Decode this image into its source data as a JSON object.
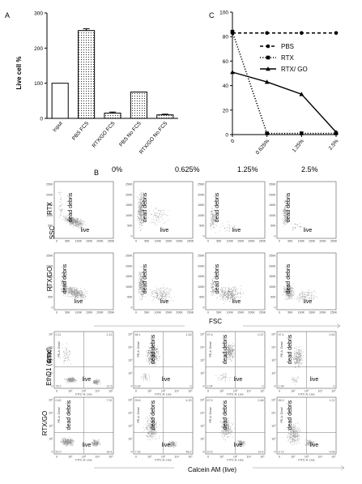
{
  "panel_labels": {
    "a": "A",
    "b": "B",
    "c": "C"
  },
  "chart_data": [
    {
      "type": "bar",
      "ylabel": "Live cell %",
      "xlabel": "",
      "ylim": [
        0,
        300
      ],
      "yticks": [
        "0",
        "100",
        "200",
        "300"
      ],
      "categories": [
        "Input",
        "PBS FCS",
        "RTX/GO FCS",
        "PBS No FCS",
        "RTX/GO No FCS"
      ],
      "values": [
        100,
        250,
        15,
        75,
        10
      ],
      "errors": [
        0,
        5,
        3,
        0,
        2
      ],
      "fills": [
        "white",
        "dots",
        "dots",
        "dots",
        "dots"
      ]
    },
    {
      "type": "line",
      "xlabel": "",
      "ylabel": "",
      "ylim": [
        0,
        100
      ],
      "yticks": [
        "0",
        "20",
        "40",
        "60",
        "80",
        "100"
      ],
      "categories": [
        "0",
        "0.625%",
        "1.25%",
        "2.5%"
      ],
      "series": [
        {
          "name": "PBS",
          "values": [
            83,
            83,
            83,
            83
          ],
          "dash": "dashed",
          "marker": "circle"
        },
        {
          "name": "RTX",
          "values": [
            84,
            1,
            1,
            1
          ],
          "dash": "dotted",
          "marker": "square"
        },
        {
          "name": "RTX/ GO",
          "values": [
            51,
            43,
            33,
            2
          ],
          "dash": "solid",
          "marker": "triangle"
        }
      ],
      "legend_position": "right"
    }
  ],
  "panel_b": {
    "concentrations": [
      "0%",
      "0.625%",
      "1.25%",
      "2.5%"
    ],
    "scatter_axes": {
      "y": "SSC",
      "x": "FSC"
    },
    "fluor_axes": {
      "y": "EthD1 (dead)",
      "x": "Calcein AM (live)"
    },
    "rows": [
      "RTX",
      "RTX/GO",
      "RTX",
      "RTX/GO"
    ],
    "gates": {
      "dead": "dead debris",
      "live": "live"
    },
    "yticks_scatter": [
      "250K",
      "200K",
      "150K",
      "100K",
      "50K",
      "0"
    ],
    "xticks_scatter": [
      "0",
      "50K",
      "100K",
      "150K",
      "200K",
      "250K"
    ],
    "yticks_fluor": [
      "10⁵",
      "10⁴",
      "10³",
      "10²",
      "0"
    ],
    "xticks_fluor": [
      "0",
      "10²",
      "10³",
      "10⁴",
      "10⁵"
    ],
    "fluor_axis_small": {
      "x": "FITC-A: Live",
      "y": "PE-A: Dead"
    },
    "quadrant_values": [
      [
        "0.11",
        "2.13",
        "76.2",
        "21.5"
      ],
      [
        "98.1",
        "1.53",
        "0.39",
        "0"
      ],
      [
        "97.6",
        "0.37",
        "2.04",
        "0"
      ],
      [
        "97.4",
        "0.63",
        "1.99",
        "0"
      ],
      [
        "0.62",
        "7.92",
        "52.0",
        "39.4"
      ],
      [
        "39.6",
        "4.33",
        "7.93",
        "48.2"
      ],
      [
        "67.5",
        "2.68",
        "10.5",
        "19.4"
      ],
      [
        "95.0",
        "1.22",
        "3.73",
        "0.06"
      ]
    ]
  }
}
